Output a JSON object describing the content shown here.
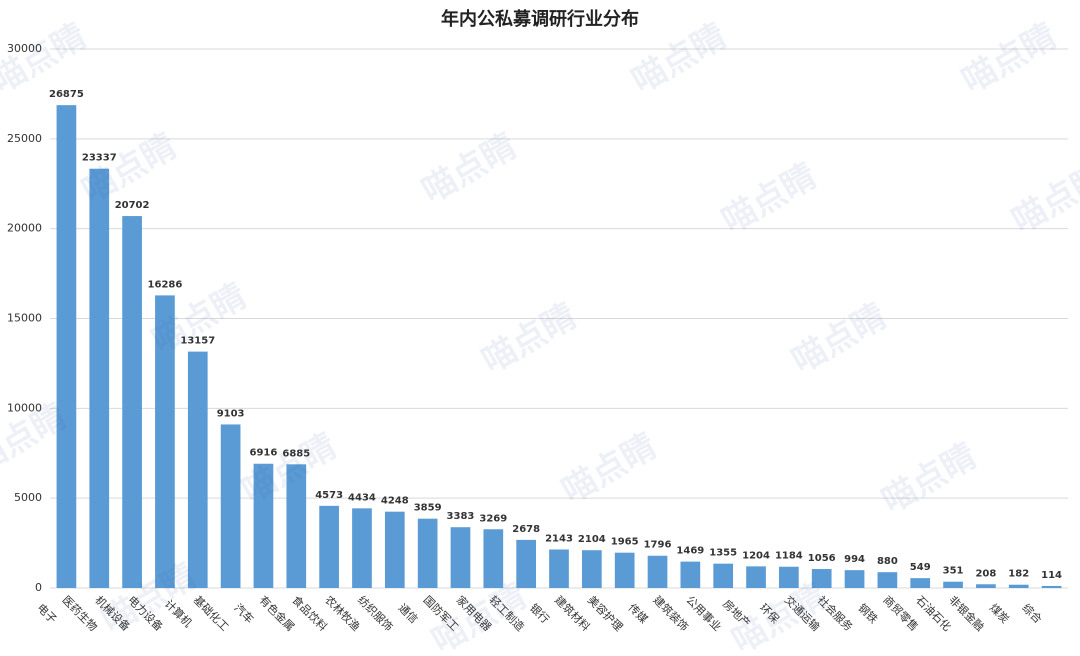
{
  "chart_data": {
    "type": "bar",
    "title": "年内公私募调研行业分布",
    "watermark": "喵点睛",
    "categories": [
      "电子",
      "医药生物",
      "机械设备",
      "电力设备",
      "计算机",
      "基础化工",
      "汽车",
      "有色金属",
      "食品饮料",
      "农林牧渔",
      "纺织服饰",
      "通信",
      "国防军工",
      "家用电器",
      "轻工制造",
      "银行",
      "建筑材料",
      "美容护理",
      "传媒",
      "建筑装饰",
      "公用事业",
      "房地产",
      "环保",
      "交通运输",
      "社会服务",
      "钢铁",
      "商贸零售",
      "石油石化",
      "非银金融",
      "煤炭",
      "综合"
    ],
    "values": [
      26875,
      23337,
      20702,
      16286,
      13157,
      9103,
      6916,
      6885,
      4573,
      4434,
      4248,
      3859,
      3383,
      3269,
      2678,
      2143,
      2104,
      1965,
      1796,
      1469,
      1355,
      1204,
      1184,
      1056,
      994,
      880,
      549,
      351,
      208,
      182,
      114
    ],
    "color": "#5b9bd5",
    "ylim": [
      0,
      30000
    ],
    "yticks": [
      0,
      5000,
      10000,
      15000,
      20000,
      25000,
      30000
    ],
    "grid": true
  }
}
